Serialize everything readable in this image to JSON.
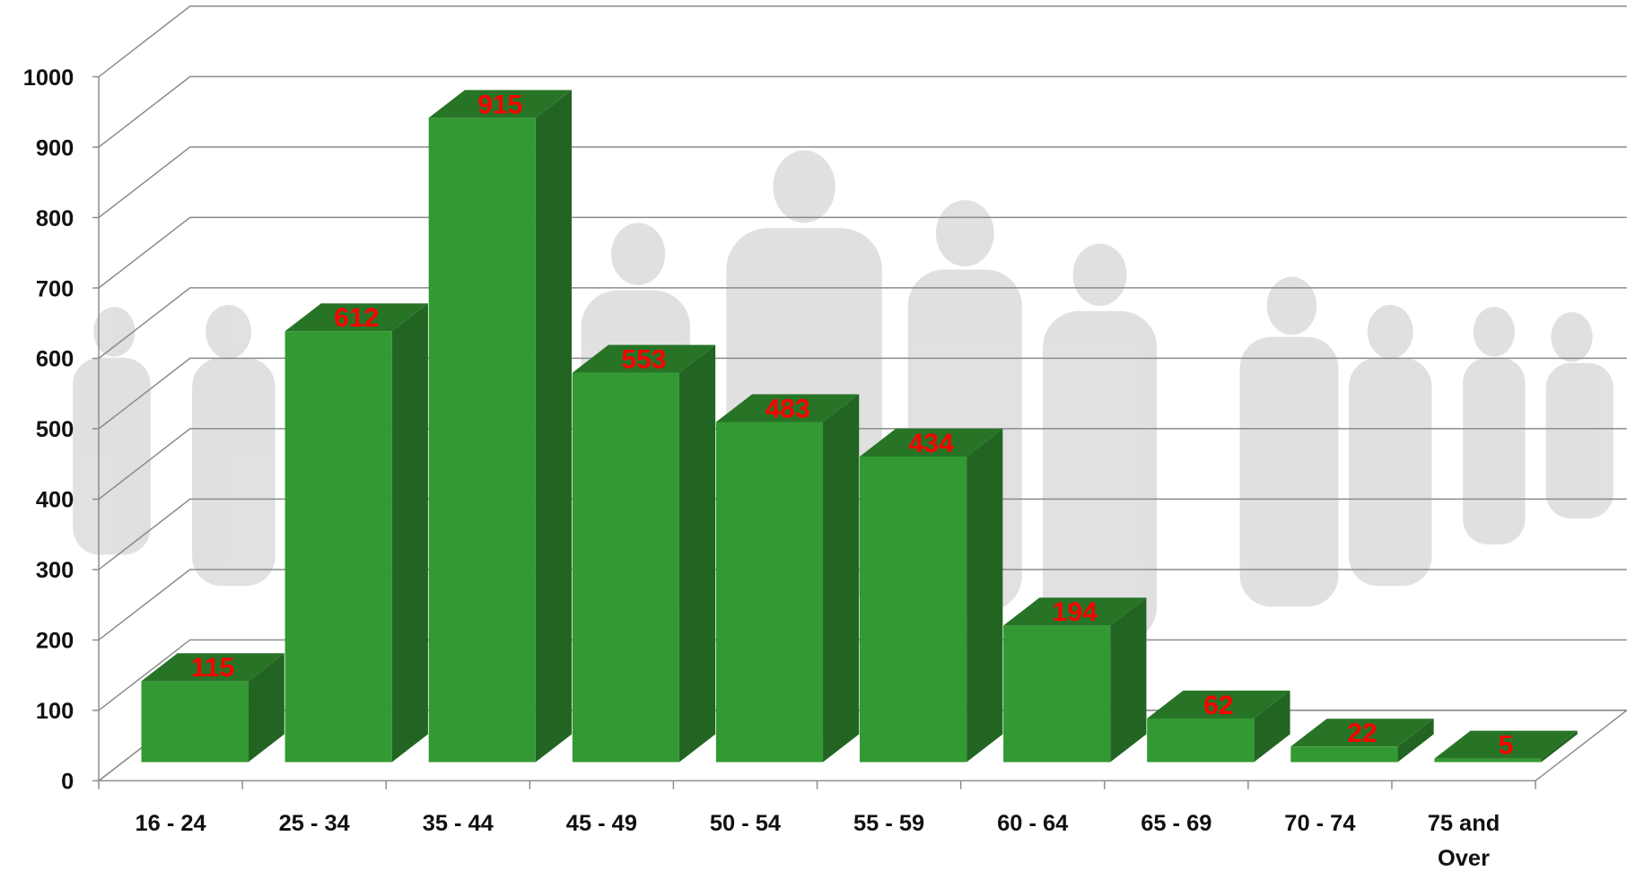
{
  "chart_data": {
    "type": "bar3d",
    "categories": [
      "16 - 24",
      "25 - 34",
      "35 - 44",
      "45 - 49",
      "50 - 54",
      "55 - 59",
      "60 - 64",
      "65 - 69",
      "70 - 74",
      "75 and Over"
    ],
    "values": [
      115,
      612,
      915,
      553,
      483,
      434,
      194,
      62,
      22,
      5
    ],
    "color": "#339933",
    "value_label_color": "#ff0000",
    "ylim": [
      0,
      1000
    ],
    "yticks": [
      0,
      100,
      200,
      300,
      400,
      500,
      600,
      700,
      800,
      900,
      1000
    ],
    "grid": true
  }
}
